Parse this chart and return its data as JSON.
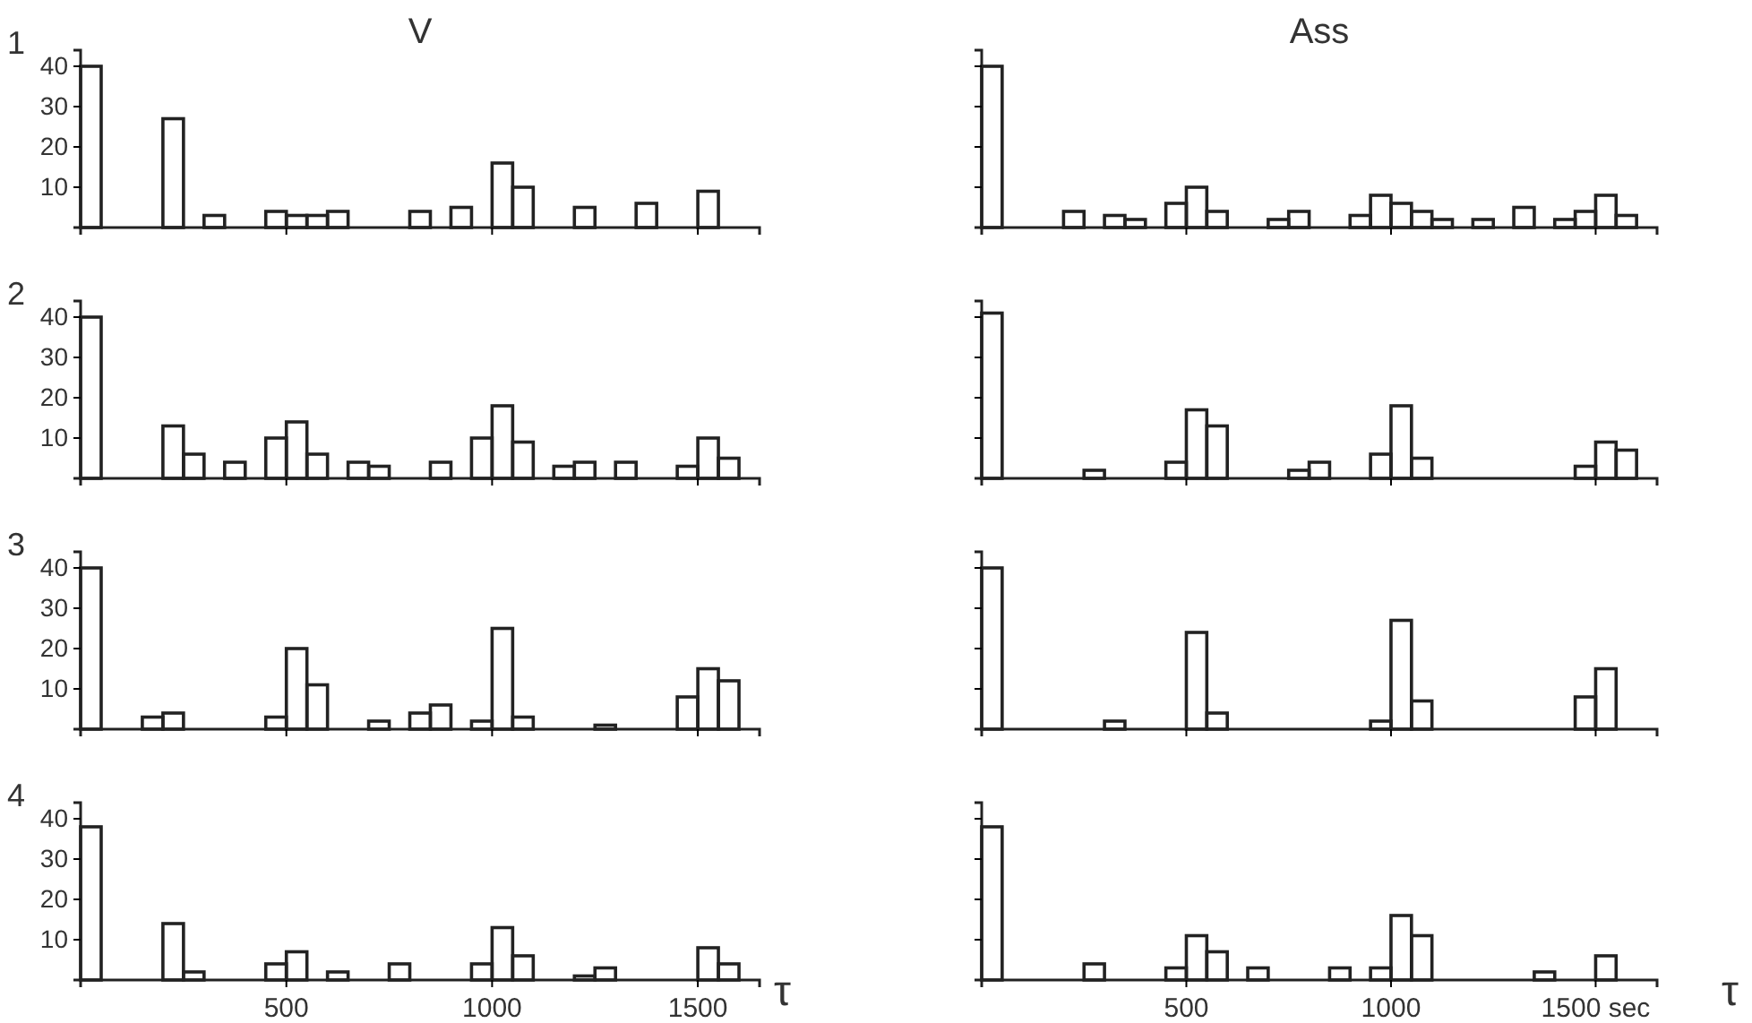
{
  "chart_data": [
    {
      "type": "histogram",
      "title": "V",
      "annotations": [
        "1"
      ],
      "bins": [
        0,
        50,
        100,
        150,
        200,
        250,
        300,
        350,
        400,
        450,
        500,
        550,
        600,
        650,
        700,
        750,
        800,
        850,
        900,
        950,
        1000,
        1050,
        1100,
        1150,
        1200,
        1250,
        1300,
        1350,
        1400,
        1450,
        1500,
        1550,
        1600,
        1650
      ],
      "values": [
        40,
        0,
        0,
        0,
        27,
        0,
        3,
        0,
        0,
        4,
        3,
        3,
        4,
        0,
        0,
        0,
        4,
        0,
        5,
        0,
        16,
        10,
        0,
        0,
        5,
        0,
        0,
        6,
        0,
        0,
        9,
        0,
        0
      ],
      "color": "#222222",
      "xlim": [
        0,
        1650
      ],
      "ylim": [
        0,
        44
      ],
      "xticks": [
        500,
        1000,
        1500
      ],
      "yticks": [
        10,
        20,
        30,
        40
      ],
      "tick_labels": "y"
    },
    {
      "type": "histogram",
      "title": "Ass",
      "bins": [
        0,
        50,
        100,
        150,
        200,
        250,
        300,
        350,
        400,
        450,
        500,
        550,
        600,
        650,
        700,
        750,
        800,
        850,
        900,
        950,
        1000,
        1050,
        1100,
        1150,
        1200,
        1250,
        1300,
        1350,
        1400,
        1450,
        1500,
        1550,
        1600,
        1650
      ],
      "values": [
        40,
        0,
        0,
        0,
        4,
        0,
        3,
        2,
        0,
        6,
        10,
        4,
        0,
        0,
        2,
        4,
        0,
        0,
        3,
        8,
        6,
        4,
        2,
        0,
        2,
        0,
        5,
        0,
        2,
        4,
        8,
        3,
        0
      ],
      "color": "#222222",
      "xlim": [
        0,
        1650
      ],
      "ylim": [
        0,
        44
      ],
      "xticks": [
        500,
        1000,
        1500
      ],
      "yticks": [
        10,
        20,
        30,
        40
      ],
      "tick_labels": false
    },
    {
      "type": "histogram",
      "annotations": [
        "2"
      ],
      "bins": [
        0,
        50,
        100,
        150,
        200,
        250,
        300,
        350,
        400,
        450,
        500,
        550,
        600,
        650,
        700,
        750,
        800,
        850,
        900,
        950,
        1000,
        1050,
        1100,
        1150,
        1200,
        1250,
        1300,
        1350,
        1400,
        1450,
        1500,
        1550,
        1600,
        1650
      ],
      "values": [
        40,
        0,
        0,
        0,
        13,
        6,
        0,
        4,
        0,
        10,
        14,
        6,
        0,
        4,
        3,
        0,
        0,
        4,
        0,
        10,
        18,
        9,
        0,
        3,
        4,
        0,
        4,
        0,
        0,
        3,
        10,
        5,
        0
      ],
      "color": "#222222",
      "xlim": [
        0,
        1650
      ],
      "ylim": [
        0,
        44
      ],
      "xticks": [
        500,
        1000,
        1500
      ],
      "yticks": [
        10,
        20,
        30,
        40
      ],
      "tick_labels": "y"
    },
    {
      "type": "histogram",
      "bins": [
        0,
        50,
        100,
        150,
        200,
        250,
        300,
        350,
        400,
        450,
        500,
        550,
        600,
        650,
        700,
        750,
        800,
        850,
        900,
        950,
        1000,
        1050,
        1100,
        1150,
        1200,
        1250,
        1300,
        1350,
        1400,
        1450,
        1500,
        1550,
        1600,
        1650
      ],
      "values": [
        41,
        0,
        0,
        0,
        0,
        2,
        0,
        0,
        0,
        4,
        17,
        13,
        0,
        0,
        0,
        2,
        4,
        0,
        0,
        6,
        18,
        5,
        0,
        0,
        0,
        0,
        0,
        0,
        0,
        3,
        9,
        7,
        0
      ],
      "color": "#222222",
      "xlim": [
        0,
        1650
      ],
      "ylim": [
        0,
        44
      ],
      "xticks": [
        500,
        1000,
        1500
      ],
      "yticks": [
        10,
        20,
        30,
        40
      ],
      "tick_labels": false
    },
    {
      "type": "histogram",
      "annotations": [
        "3"
      ],
      "bins": [
        0,
        50,
        100,
        150,
        200,
        250,
        300,
        350,
        400,
        450,
        500,
        550,
        600,
        650,
        700,
        750,
        800,
        850,
        900,
        950,
        1000,
        1050,
        1100,
        1150,
        1200,
        1250,
        1300,
        1350,
        1400,
        1450,
        1500,
        1550,
        1600,
        1650
      ],
      "values": [
        40,
        0,
        0,
        3,
        4,
        0,
        0,
        0,
        0,
        3,
        20,
        11,
        0,
        0,
        2,
        0,
        4,
        6,
        0,
        2,
        25,
        3,
        0,
        0,
        0,
        1,
        0,
        0,
        0,
        8,
        15,
        12,
        0
      ],
      "color": "#222222",
      "xlim": [
        0,
        1650
      ],
      "ylim": [
        0,
        44
      ],
      "xticks": [
        500,
        1000,
        1500
      ],
      "yticks": [
        10,
        20,
        30,
        40
      ],
      "tick_labels": "y"
    },
    {
      "type": "histogram",
      "bins": [
        0,
        50,
        100,
        150,
        200,
        250,
        300,
        350,
        400,
        450,
        500,
        550,
        600,
        650,
        700,
        750,
        800,
        850,
        900,
        950,
        1000,
        1050,
        1100,
        1150,
        1200,
        1250,
        1300,
        1350,
        1400,
        1450,
        1500,
        1550,
        1600,
        1650
      ],
      "values": [
        40,
        0,
        0,
        0,
        0,
        0,
        2,
        0,
        0,
        0,
        24,
        4,
        0,
        0,
        0,
        0,
        0,
        0,
        0,
        2,
        27,
        7,
        0,
        0,
        0,
        0,
        0,
        0,
        0,
        8,
        15,
        0,
        0
      ],
      "color": "#222222",
      "xlim": [
        0,
        1650
      ],
      "ylim": [
        0,
        44
      ],
      "xticks": [
        500,
        1000,
        1500
      ],
      "yticks": [
        10,
        20,
        30,
        40
      ],
      "tick_labels": false
    },
    {
      "type": "histogram",
      "annotations": [
        "4"
      ],
      "xlabel": "τ",
      "bins": [
        0,
        50,
        100,
        150,
        200,
        250,
        300,
        350,
        400,
        450,
        500,
        550,
        600,
        650,
        700,
        750,
        800,
        850,
        900,
        950,
        1000,
        1050,
        1100,
        1150,
        1200,
        1250,
        1300,
        1350,
        1400,
        1450,
        1500,
        1550,
        1600,
        1650
      ],
      "values": [
        38,
        0,
        0,
        0,
        14,
        2,
        0,
        0,
        0,
        4,
        7,
        0,
        2,
        0,
        0,
        4,
        0,
        0,
        0,
        4,
        13,
        6,
        0,
        0,
        1,
        3,
        0,
        0,
        0,
        0,
        8,
        4,
        0
      ],
      "color": "#222222",
      "xlim": [
        0,
        1650
      ],
      "ylim": [
        0,
        44
      ],
      "xticks": [
        500,
        1000,
        1500
      ],
      "yticks": [
        10,
        20,
        30,
        40
      ]
    },
    {
      "type": "histogram",
      "xlabel": "τ",
      "bins": [
        0,
        50,
        100,
        150,
        200,
        250,
        300,
        350,
        400,
        450,
        500,
        550,
        600,
        650,
        700,
        750,
        800,
        850,
        900,
        950,
        1000,
        1050,
        1100,
        1150,
        1200,
        1250,
        1300,
        1350,
        1400,
        1450,
        1500,
        1550,
        1600,
        1650
      ],
      "values": [
        38,
        0,
        0,
        0,
        0,
        4,
        0,
        0,
        0,
        3,
        11,
        7,
        0,
        3,
        0,
        0,
        0,
        3,
        0,
        3,
        16,
        11,
        0,
        0,
        0,
        0,
        0,
        2,
        0,
        0,
        6,
        0,
        0
      ],
      "color": "#222222",
      "xlim": [
        0,
        1650
      ],
      "ylim": [
        0,
        44
      ],
      "xticks": [
        500,
        1000,
        {
          "value": 1500,
          "label": "1500 sec"
        }
      ],
      "yticks": [
        10,
        20,
        30,
        40
      ],
      "tick_labels": "x"
    }
  ]
}
